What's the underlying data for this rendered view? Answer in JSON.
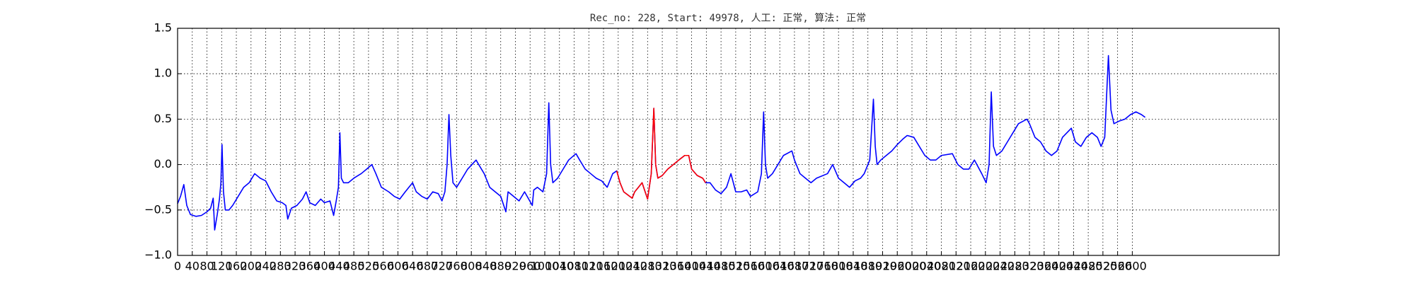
{
  "chart_data": {
    "type": "line",
    "title": "Rec_no: 228, Start: 49978, 人工: 正常, 算法: 正常",
    "xlim": [
      0,
      3000
    ],
    "xticks": [
      0,
      40,
      80,
      120,
      160,
      200,
      240,
      280,
      320,
      360,
      400,
      440,
      480,
      520,
      560,
      600,
      640,
      680,
      720,
      760,
      800,
      840,
      880,
      920,
      960,
      1000,
      1040,
      1080,
      1120,
      1160,
      1200,
      1240,
      1280,
      1320,
      1360,
      1400,
      1440,
      1480,
      1520,
      1560,
      1600,
      1640,
      1680,
      1720,
      1760,
      1800,
      1840,
      1880,
      1920,
      1960,
      2000,
      2040,
      2080,
      2120,
      2160,
      2200,
      2240,
      2280,
      2320,
      2360,
      2400,
      2440,
      2480,
      2520,
      2560,
      2600
    ],
    "ylim": [
      -1,
      1.5
    ],
    "yticks": [
      {
        "value": -1,
        "label": "−1.0"
      },
      {
        "value": -0.5,
        "label": "−0.5"
      },
      {
        "value": 0,
        "label": "0.0"
      },
      {
        "value": 0.5,
        "label": "0.5"
      },
      {
        "value": 1,
        "label": "1.0"
      },
      {
        "value": 1.5,
        "label": "1.5"
      }
    ],
    "grid": true,
    "series": [
      {
        "color": "#0000ff",
        "x": [
          0,
          8,
          17,
          25,
          35,
          50,
          65,
          80,
          90,
          97,
          101,
          108,
          114,
          118,
          121,
          125,
          130,
          140,
          150,
          165,
          180,
          195,
          210,
          225,
          240,
          255,
          270,
          285,
          295,
          300,
          310,
          325,
          340,
          350,
          360,
          375,
          390,
          400,
          415,
          425,
          432,
          438,
          442,
          446,
          452,
          465,
          480,
          500,
          515,
          529,
          540,
          555,
          575,
          590,
          605,
          620,
          640,
          650,
          665,
          680,
          695,
          710,
          720,
          728,
          734,
          739,
          744,
          750,
          760,
          775,
          790,
          813,
          820,
          835,
          850,
          865,
          880,
          894,
          900,
          915,
          930,
          945,
          966,
          970,
          980,
          995,
          1005,
          1011,
          1016,
          1022,
          1035,
          1050,
          1065,
          1085,
          1095,
          1110,
          1125,
          1140,
          1155,
          1170,
          1185,
          1196,
          1205,
          1215,
          1238,
          1245,
          1255,
          1265,
          1280,
          1290,
          1297,
          1302,
          1308,
          1320,
          1335,
          1350,
          1365,
          1381,
          1392,
          1400,
          1415,
          1430,
          1438,
          1450,
          1465,
          1480,
          1495,
          1507,
          1520,
          1535,
          1550,
          1560,
          1580,
          1590,
          1596,
          1601,
          1607,
          1620,
          1635,
          1650,
          1673,
          1680,
          1695,
          1710,
          1725,
          1740,
          1770,
          1784,
          1800,
          1815,
          1830,
          1845,
          1860,
          1870,
          1885,
          1895,
          1900,
          1905,
          1915,
          1930,
          1945,
          1960,
          1975,
          1987,
          2005,
          2020,
          2035,
          2050,
          2065,
          2080,
          2110,
          2125,
          2140,
          2155,
          2170,
          2190,
          2202,
          2210,
          2216,
          2222,
          2230,
          2245,
          2260,
          2275,
          2290,
          2313,
          2320,
          2335,
          2350,
          2365,
          2380,
          2395,
          2410,
          2434,
          2445,
          2460,
          2475,
          2490,
          2505,
          2515,
          2525,
          2535,
          2542,
          2550,
          2565,
          2580,
          2595,
          2610,
          2625,
          2635
        ],
        "values": [
          -0.43,
          -0.35,
          -0.22,
          -0.45,
          -0.55,
          -0.57,
          -0.56,
          -0.52,
          -0.48,
          -0.37,
          -0.72,
          -0.55,
          -0.38,
          -0.2,
          0.22,
          -0.3,
          -0.5,
          -0.5,
          -0.45,
          -0.35,
          -0.25,
          -0.2,
          -0.1,
          -0.15,
          -0.18,
          -0.3,
          -0.4,
          -0.42,
          -0.45,
          -0.6,
          -0.48,
          -0.45,
          -0.38,
          -0.3,
          -0.42,
          -0.45,
          -0.38,
          -0.42,
          -0.4,
          -0.56,
          -0.4,
          -0.25,
          0.35,
          -0.15,
          -0.2,
          -0.2,
          -0.15,
          -0.1,
          -0.05,
          0.0,
          -0.1,
          -0.25,
          -0.3,
          -0.35,
          -0.38,
          -0.3,
          -0.2,
          -0.3,
          -0.35,
          -0.38,
          -0.3,
          -0.32,
          -0.4,
          -0.3,
          0.0,
          0.55,
          0.1,
          -0.2,
          -0.25,
          -0.15,
          -0.05,
          0.05,
          0.0,
          -0.1,
          -0.25,
          -0.3,
          -0.35,
          -0.52,
          -0.3,
          -0.35,
          -0.4,
          -0.3,
          -0.45,
          -0.28,
          -0.25,
          -0.3,
          -0.1,
          0.68,
          0.0,
          -0.2,
          -0.15,
          -0.05,
          0.05,
          0.12,
          0.05,
          -0.05,
          -0.1,
          -0.15,
          -0.18,
          -0.25,
          -0.1,
          -0.07,
          -0.2,
          -0.3,
          -0.37,
          -0.3,
          -0.25,
          -0.2,
          -0.38,
          -0.1,
          0.62,
          0.0,
          -0.15,
          -0.12,
          -0.05,
          0.0,
          0.05,
          0.1,
          0.1,
          -0.05,
          -0.12,
          -0.15,
          -0.2,
          -0.2,
          -0.28,
          -0.32,
          -0.25,
          -0.1,
          -0.3,
          -0.3,
          -0.28,
          -0.35,
          -0.3,
          -0.1,
          0.58,
          0.0,
          -0.15,
          -0.1,
          0.0,
          0.1,
          0.15,
          0.05,
          -0.1,
          -0.15,
          -0.2,
          -0.15,
          -0.1,
          0.0,
          -0.15,
          -0.2,
          -0.25,
          -0.18,
          -0.15,
          -0.1,
          0.05,
          0.72,
          0.2,
          0.0,
          0.05,
          0.1,
          0.15,
          0.22,
          0.28,
          0.32,
          0.3,
          0.2,
          0.1,
          0.05,
          0.05,
          0.1,
          0.12,
          0.0,
          -0.05,
          -0.05,
          0.05,
          -0.1,
          -0.2,
          0.0,
          0.8,
          0.2,
          0.1,
          0.15,
          0.25,
          0.35,
          0.45,
          0.5,
          0.45,
          0.3,
          0.25,
          0.15,
          0.1,
          0.15,
          0.3,
          0.4,
          0.25,
          0.2,
          0.3,
          0.35,
          0.3,
          0.2,
          0.3,
          1.2,
          0.6,
          0.45,
          0.48,
          0.5,
          0.55,
          0.58,
          0.55,
          0.52
        ]
      },
      {
        "color": "#ff0000",
        "x": [
          1196,
          1205,
          1215,
          1238,
          1245,
          1255,
          1265,
          1280,
          1290,
          1297,
          1302,
          1308,
          1320,
          1335,
          1350,
          1365,
          1381,
          1392,
          1400,
          1415,
          1430,
          1438
        ],
        "values": [
          -0.07,
          -0.2,
          -0.3,
          -0.37,
          -0.3,
          -0.25,
          -0.2,
          -0.38,
          -0.1,
          0.62,
          0.0,
          -0.15,
          -0.12,
          -0.05,
          0.0,
          0.05,
          0.1,
          0.1,
          -0.05,
          -0.12,
          -0.15,
          -0.2
        ]
      }
    ]
  }
}
